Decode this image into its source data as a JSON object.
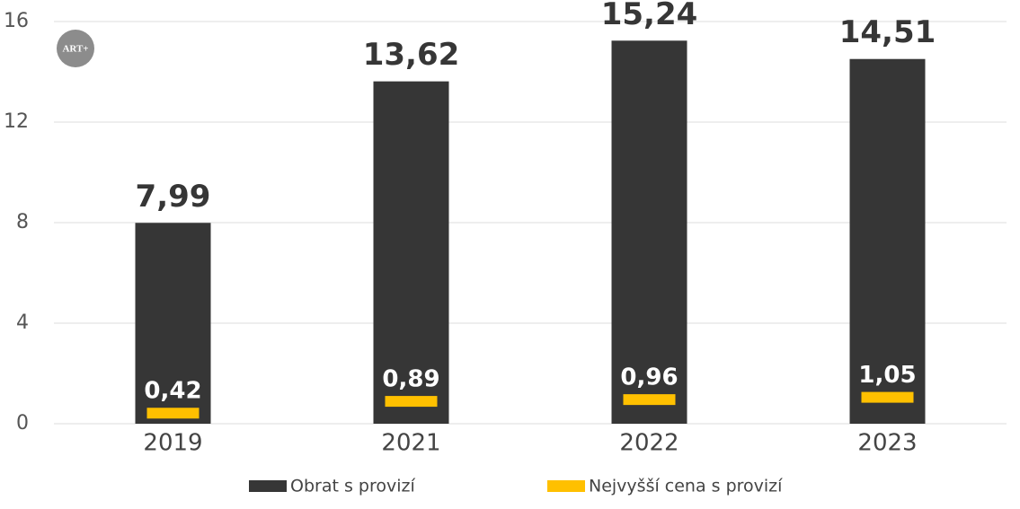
{
  "chart_data": {
    "type": "bar",
    "logo_text": "ART+",
    "categories": [
      "2019",
      "2021",
      "2022",
      "2023"
    ],
    "series": [
      {
        "name": "Obrat s provizí",
        "color": "#363636",
        "style": "bar",
        "values": [
          7.99,
          13.62,
          15.24,
          14.51
        ],
        "value_labels": [
          "7,99",
          "13,62",
          "15,24",
          "14,51"
        ]
      },
      {
        "name": "Nejvyšší cena s provizí",
        "color": "#ffc000",
        "style": "dash",
        "values": [
          0.42,
          0.89,
          0.96,
          1.05
        ],
        "value_labels": [
          "0,42",
          "0,89",
          "0,96",
          "1,05"
        ]
      }
    ],
    "ylim": [
      0,
      16
    ],
    "yticks": [
      0,
      4,
      8,
      12,
      16
    ],
    "grid": true
  }
}
